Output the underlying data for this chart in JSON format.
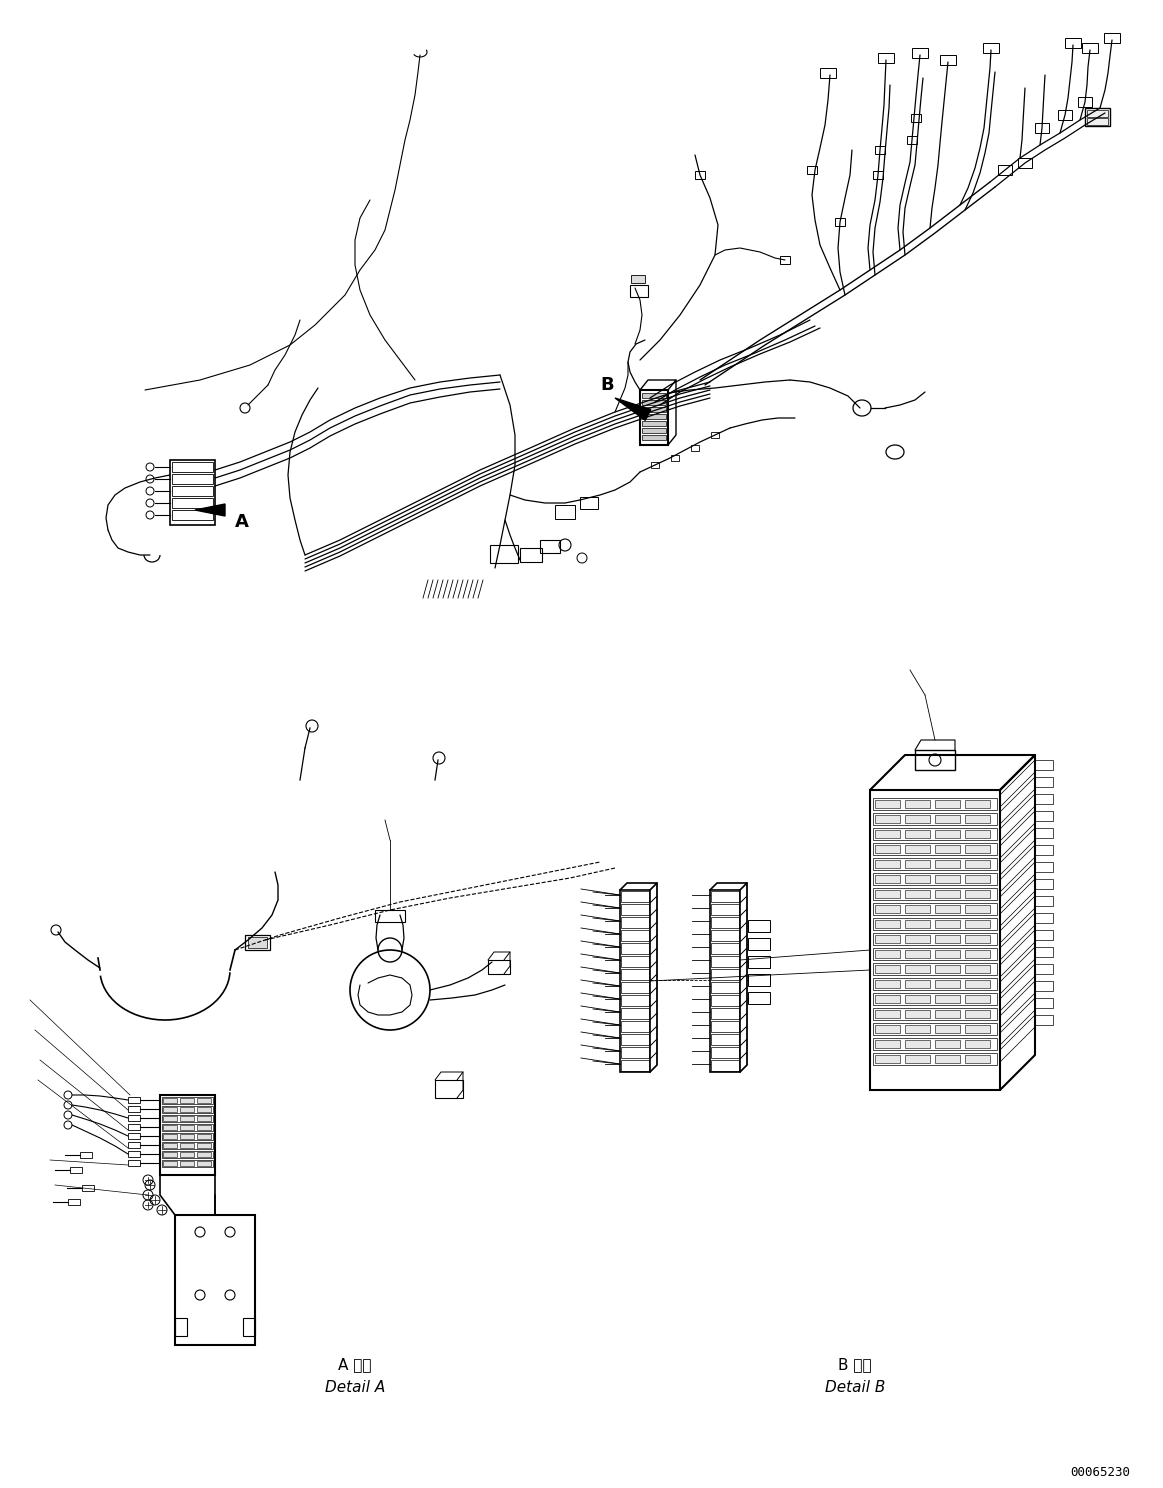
{
  "background_color": "#ffffff",
  "line_color": "#000000",
  "fig_width": 11.63,
  "fig_height": 14.88,
  "dpi": 100,
  "label_A": "A",
  "label_B": "B",
  "detail_A_jp": "A 詳細",
  "detail_A_en": "Detail A",
  "detail_B_jp": "B 詳細",
  "detail_B_en": "Detail B",
  "part_number": "00065230"
}
